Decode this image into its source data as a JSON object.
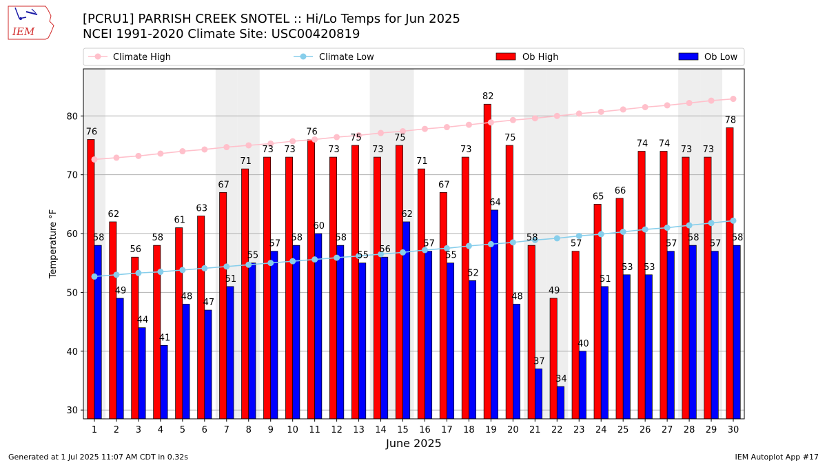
{
  "header": {
    "title_line1": "[PCRU1] PARRISH CREEK SNOTEL :: Hi/Lo Temps for Jun 2025",
    "title_line2": "NCEI 1991-2020 Climate Site: USC00420819",
    "logo_text": "IEM"
  },
  "footer": {
    "generated": "Generated at 1 Jul 2025 11:07 AM CDT in 0.32s",
    "app": "IEM Autoplot App #17"
  },
  "colors": {
    "ob_high": "#ff0000",
    "ob_low": "#0000ff",
    "climate_high": "#ffc0cb",
    "climate_low": "#87ceeb",
    "weekend_band": "#eeeeee",
    "logo": "#d22b2b"
  },
  "chart_data": {
    "type": "bar",
    "title": "[PCRU1] PARRISH CREEK SNOTEL :: Hi/Lo Temps for Jun 2025",
    "subtitle": "NCEI 1991-2020 Climate Site: USC00420819",
    "xlabel": "June 2025",
    "ylabel": "Temperature °F",
    "xlim": [
      0.5,
      30.5
    ],
    "ylim": [
      28.5,
      88
    ],
    "yticks": [
      30,
      40,
      50,
      60,
      70,
      80
    ],
    "grid": true,
    "legend_position": "top",
    "shaded_days": [
      1,
      7,
      8,
      14,
      15,
      21,
      22,
      28,
      29
    ],
    "categories": [
      1,
      2,
      3,
      4,
      5,
      6,
      7,
      8,
      9,
      10,
      11,
      12,
      13,
      14,
      15,
      16,
      17,
      18,
      19,
      20,
      21,
      22,
      23,
      24,
      25,
      26,
      27,
      28,
      29,
      30
    ],
    "series": [
      {
        "name": "Climate High",
        "kind": "line",
        "values": [
          72.6,
          72.9,
          73.2,
          73.6,
          74.0,
          74.3,
          74.7,
          75.0,
          75.3,
          75.7,
          76.0,
          76.4,
          76.7,
          77.1,
          77.4,
          77.8,
          78.1,
          78.5,
          78.9,
          79.3,
          79.6,
          80.0,
          80.4,
          80.7,
          81.1,
          81.5,
          81.8,
          82.2,
          82.6,
          82.9
        ]
      },
      {
        "name": "Climate Low",
        "kind": "line",
        "values": [
          52.7,
          53.0,
          53.3,
          53.5,
          53.8,
          54.1,
          54.4,
          54.7,
          55.0,
          55.3,
          55.6,
          55.9,
          56.2,
          56.5,
          56.8,
          57.2,
          57.5,
          57.9,
          58.2,
          58.5,
          58.9,
          59.2,
          59.6,
          59.9,
          60.3,
          60.7,
          61.0,
          61.4,
          61.8,
          62.2
        ]
      },
      {
        "name": "Ob High",
        "kind": "bar",
        "values": [
          76,
          62,
          56,
          58,
          61,
          63,
          67,
          71,
          73,
          73,
          76,
          73,
          75,
          73,
          75,
          71,
          67,
          73,
          82,
          75,
          58,
          49,
          57,
          65,
          66,
          74,
          74,
          73,
          73,
          78
        ]
      },
      {
        "name": "Ob Low",
        "kind": "bar",
        "values": [
          58,
          49,
          44,
          41,
          48,
          47,
          51,
          55,
          57,
          58,
          60,
          58,
          55,
          56,
          62,
          57,
          55,
          52,
          64,
          48,
          37,
          34,
          40,
          51,
          53,
          53,
          57,
          58,
          57,
          58
        ]
      }
    ]
  }
}
